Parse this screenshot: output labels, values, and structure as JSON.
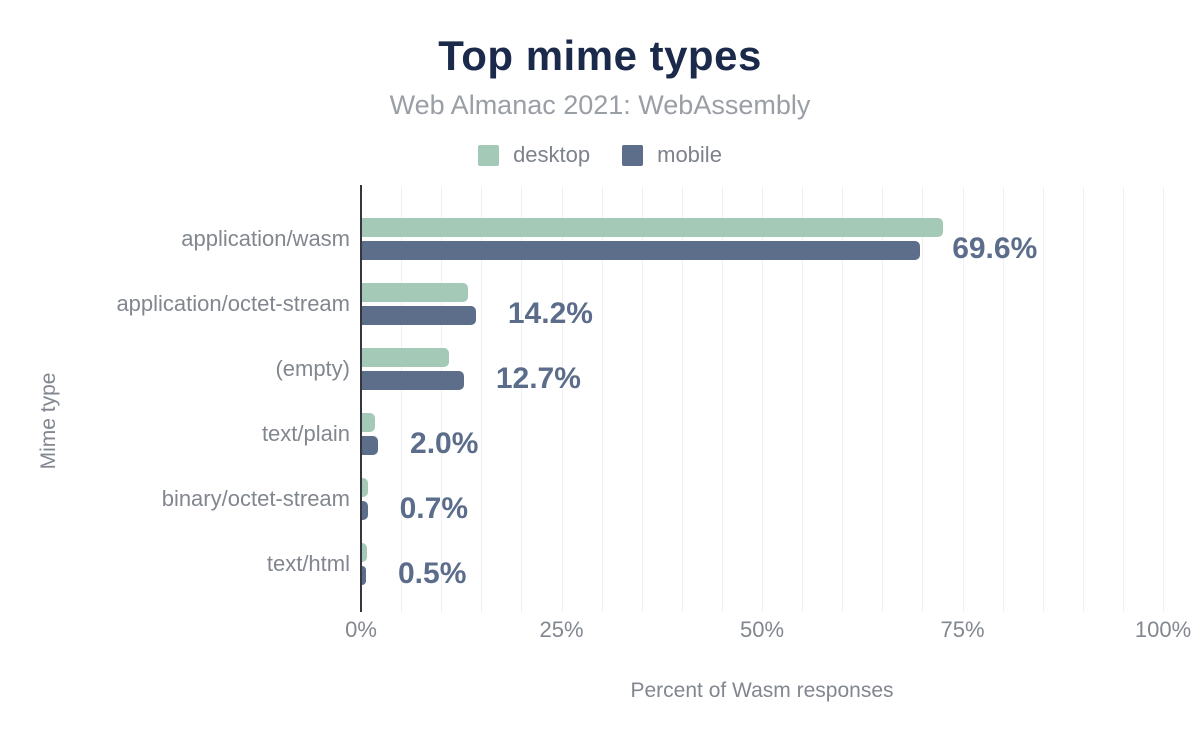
{
  "chart": {
    "title": "Top mime types",
    "subtitle": "Web Almanac 2021: WebAssembly",
    "xlabel": "Percent of Wasm responses",
    "ylabel": "Mime type"
  },
  "chart_data": {
    "type": "bar",
    "orientation": "horizontal",
    "title": "Top mime types",
    "subtitle": "Web Almanac 2021: WebAssembly",
    "xlabel": "Percent of Wasm responses",
    "ylabel": "Mime type",
    "categories": [
      "application/wasm",
      "application/octet-stream",
      "(empty)",
      "text/plain",
      "binary/octet-stream",
      "text/html"
    ],
    "series": [
      {
        "name": "desktop",
        "color": "#a5c9b7",
        "values": [
          72.5,
          13.2,
          10.9,
          1.6,
          0.8,
          0.6
        ]
      },
      {
        "name": "mobile",
        "color": "#5d6e8b",
        "values": [
          69.6,
          14.2,
          12.7,
          2.0,
          0.7,
          0.5
        ]
      }
    ],
    "bar_value_labels": [
      "69.6%",
      "14.2%",
      "12.7%",
      "2.0%",
      "0.7%",
      "0.5%"
    ],
    "bar_value_labels_series": "mobile",
    "x_ticks": [
      {
        "value": 0,
        "label": "0%"
      },
      {
        "value": 25,
        "label": "25%"
      },
      {
        "value": 50,
        "label": "50%"
      },
      {
        "value": 75,
        "label": "75%"
      },
      {
        "value": 100,
        "label": "100%"
      }
    ],
    "xlim": [
      0,
      100
    ],
    "grid": true,
    "grid_step_percent": 5,
    "legend_position": "top"
  },
  "colors": {
    "title": "#1b2a4b",
    "subtitle": "#9a9ea5",
    "axis_text": "#82878f",
    "value_label": "#5b6d8a",
    "desktop_bar": "#a5c9b7",
    "mobile_bar": "#5d6e8b",
    "gridline": "#eef0f3",
    "axis_line": "#34383e",
    "background": "#ffffff"
  }
}
